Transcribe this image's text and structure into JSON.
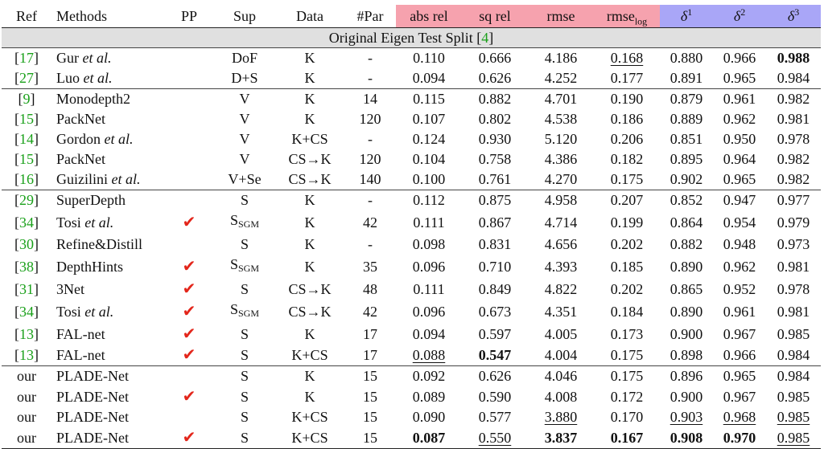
{
  "header": {
    "ref": "Ref",
    "methods": "Methods",
    "pp": "PP",
    "sup": "Sup",
    "data": "Data",
    "par": "#Par",
    "abs_rel": "abs rel",
    "sq_rel": "sq rel",
    "rmse": "rmse",
    "rmse_log_base": "rmse",
    "rmse_log_sub": "log",
    "d_base": "δ",
    "d1": "1",
    "d2": "2",
    "d3": "3"
  },
  "section_title": {
    "text": "Original Eigen Test Split [",
    "cite": "4",
    "close": "]"
  },
  "check_glyph": "✔",
  "groups": [
    {
      "rows": [
        {
          "ref": "17",
          "method": "Gur",
          "method_suffix": "et al.",
          "pp": false,
          "sup": "DoF",
          "sup_sub": "",
          "data": "K",
          "par": "-",
          "cells": [
            "0.110",
            "0.666",
            "4.186",
            "0.168",
            "0.880",
            "0.966",
            "0.988"
          ],
          "bold": [
            6
          ],
          "underline": [
            3
          ]
        },
        {
          "ref": "27",
          "method": "Luo",
          "method_suffix": "et al.",
          "pp": false,
          "sup": "D+S",
          "sup_sub": "",
          "data": "K",
          "par": "-",
          "cells": [
            "0.094",
            "0.626",
            "4.252",
            "0.177",
            "0.891",
            "0.965",
            "0.984"
          ],
          "bold": [],
          "underline": []
        }
      ]
    },
    {
      "rows": [
        {
          "ref": "9",
          "method": "Monodepth2",
          "method_suffix": "",
          "pp": false,
          "sup": "V",
          "sup_sub": "",
          "data": "K",
          "par": "14",
          "cells": [
            "0.115",
            "0.882",
            "4.701",
            "0.190",
            "0.879",
            "0.961",
            "0.982"
          ],
          "bold": [],
          "underline": []
        },
        {
          "ref": "15",
          "method": "PackNet",
          "method_suffix": "",
          "pp": false,
          "sup": "V",
          "sup_sub": "",
          "data": "K",
          "par": "120",
          "cells": [
            "0.107",
            "0.802",
            "4.538",
            "0.186",
            "0.889",
            "0.962",
            "0.981"
          ],
          "bold": [],
          "underline": []
        },
        {
          "ref": "14",
          "method": "Gordon",
          "method_suffix": "et al.",
          "pp": false,
          "sup": "V",
          "sup_sub": "",
          "data": "K+CS",
          "par": "-",
          "cells": [
            "0.124",
            "0.930",
            "5.120",
            "0.206",
            "0.851",
            "0.950",
            "0.978"
          ],
          "bold": [],
          "underline": []
        },
        {
          "ref": "15",
          "method": "PackNet",
          "method_suffix": "",
          "pp": false,
          "sup": "V",
          "sup_sub": "",
          "data": "CS→K",
          "par": "120",
          "cells": [
            "0.104",
            "0.758",
            "4.386",
            "0.182",
            "0.895",
            "0.964",
            "0.982"
          ],
          "bold": [],
          "underline": []
        },
        {
          "ref": "16",
          "method": "Guizilini",
          "method_suffix": "et al.",
          "pp": false,
          "sup": "V+Se",
          "sup_sub": "",
          "data": "CS→K",
          "par": "140",
          "cells": [
            "0.100",
            "0.761",
            "4.270",
            "0.175",
            "0.902",
            "0.965",
            "0.982"
          ],
          "bold": [],
          "underline": []
        }
      ]
    },
    {
      "rows": [
        {
          "ref": "29",
          "method": "SuperDepth",
          "method_suffix": "",
          "pp": false,
          "sup": "S",
          "sup_sub": "",
          "data": "K",
          "par": "-",
          "cells": [
            "0.112",
            "0.875",
            "4.958",
            "0.207",
            "0.852",
            "0.947",
            "0.977"
          ],
          "bold": [],
          "underline": []
        },
        {
          "ref": "34",
          "method": "Tosi",
          "method_suffix": "et al.",
          "pp": true,
          "sup": "S",
          "sup_sub": "SGM",
          "data": "K",
          "par": "42",
          "cells": [
            "0.111",
            "0.867",
            "4.714",
            "0.199",
            "0.864",
            "0.954",
            "0.979"
          ],
          "bold": [],
          "underline": []
        },
        {
          "ref": "30",
          "method": "Refine&Distill",
          "method_suffix": "",
          "pp": false,
          "sup": "S",
          "sup_sub": "",
          "data": "K",
          "par": "-",
          "cells": [
            "0.098",
            "0.831",
            "4.656",
            "0.202",
            "0.882",
            "0.948",
            "0.973"
          ],
          "bold": [],
          "underline": []
        },
        {
          "ref": "38",
          "method": "DepthHints",
          "method_suffix": "",
          "pp": true,
          "sup": "S",
          "sup_sub": "SGM",
          "data": "K",
          "par": "35",
          "cells": [
            "0.096",
            "0.710",
            "4.393",
            "0.185",
            "0.890",
            "0.962",
            "0.981"
          ],
          "bold": [],
          "underline": []
        },
        {
          "ref": "31",
          "method": "3Net",
          "method_suffix": "",
          "pp": true,
          "sup": "S",
          "sup_sub": "",
          "data": "CS→K",
          "par": "48",
          "cells": [
            "0.111",
            "0.849",
            "4.822",
            "0.202",
            "0.865",
            "0.952",
            "0.978"
          ],
          "bold": [],
          "underline": []
        },
        {
          "ref": "34",
          "method": "Tosi",
          "method_suffix": "et al.",
          "pp": true,
          "sup": "S",
          "sup_sub": "SGM",
          "data": "CS→K",
          "par": "42",
          "cells": [
            "0.096",
            "0.673",
            "4.351",
            "0.184",
            "0.890",
            "0.961",
            "0.981"
          ],
          "bold": [],
          "underline": []
        },
        {
          "ref": "13",
          "method": "FAL-net",
          "method_suffix": "",
          "pp": true,
          "sup": "S",
          "sup_sub": "",
          "data": "K",
          "par": "17",
          "cells": [
            "0.094",
            "0.597",
            "4.005",
            "0.173",
            "0.900",
            "0.967",
            "0.985"
          ],
          "bold": [],
          "underline": []
        },
        {
          "ref": "13",
          "method": "FAL-net",
          "method_suffix": "",
          "pp": true,
          "sup": "S",
          "sup_sub": "",
          "data": "K+CS",
          "par": "17",
          "cells": [
            "0.088",
            "0.547",
            "4.004",
            "0.175",
            "0.898",
            "0.966",
            "0.984"
          ],
          "bold": [
            1
          ],
          "underline": [
            0
          ]
        }
      ]
    },
    {
      "rows": [
        {
          "ref": "our",
          "method": "PLADE-Net",
          "method_suffix": "",
          "pp": false,
          "sup": "S",
          "sup_sub": "",
          "data": "K",
          "par": "15",
          "cells": [
            "0.092",
            "0.626",
            "4.046",
            "0.175",
            "0.896",
            "0.965",
            "0.984"
          ],
          "bold": [],
          "underline": []
        },
        {
          "ref": "our",
          "method": "PLADE-Net",
          "method_suffix": "",
          "pp": true,
          "sup": "S",
          "sup_sub": "",
          "data": "K",
          "par": "15",
          "cells": [
            "0.089",
            "0.590",
            "4.008",
            "0.172",
            "0.900",
            "0.967",
            "0.985"
          ],
          "bold": [],
          "underline": []
        },
        {
          "ref": "our",
          "method": "PLADE-Net",
          "method_suffix": "",
          "pp": false,
          "sup": "S",
          "sup_sub": "",
          "data": "K+CS",
          "par": "15",
          "cells": [
            "0.090",
            "0.577",
            "3.880",
            "0.170",
            "0.903",
            "0.968",
            "0.985"
          ],
          "bold": [],
          "underline": [
            2,
            4,
            5,
            6
          ]
        },
        {
          "ref": "our",
          "method": "PLADE-Net",
          "method_suffix": "",
          "pp": true,
          "sup": "S",
          "sup_sub": "",
          "data": "K+CS",
          "par": "15",
          "cells": [
            "0.087",
            "0.550",
            "3.837",
            "0.167",
            "0.908",
            "0.970",
            "0.985"
          ],
          "bold": [
            0,
            2,
            3,
            4,
            5
          ],
          "underline": [
            1,
            6
          ]
        }
      ]
    }
  ]
}
